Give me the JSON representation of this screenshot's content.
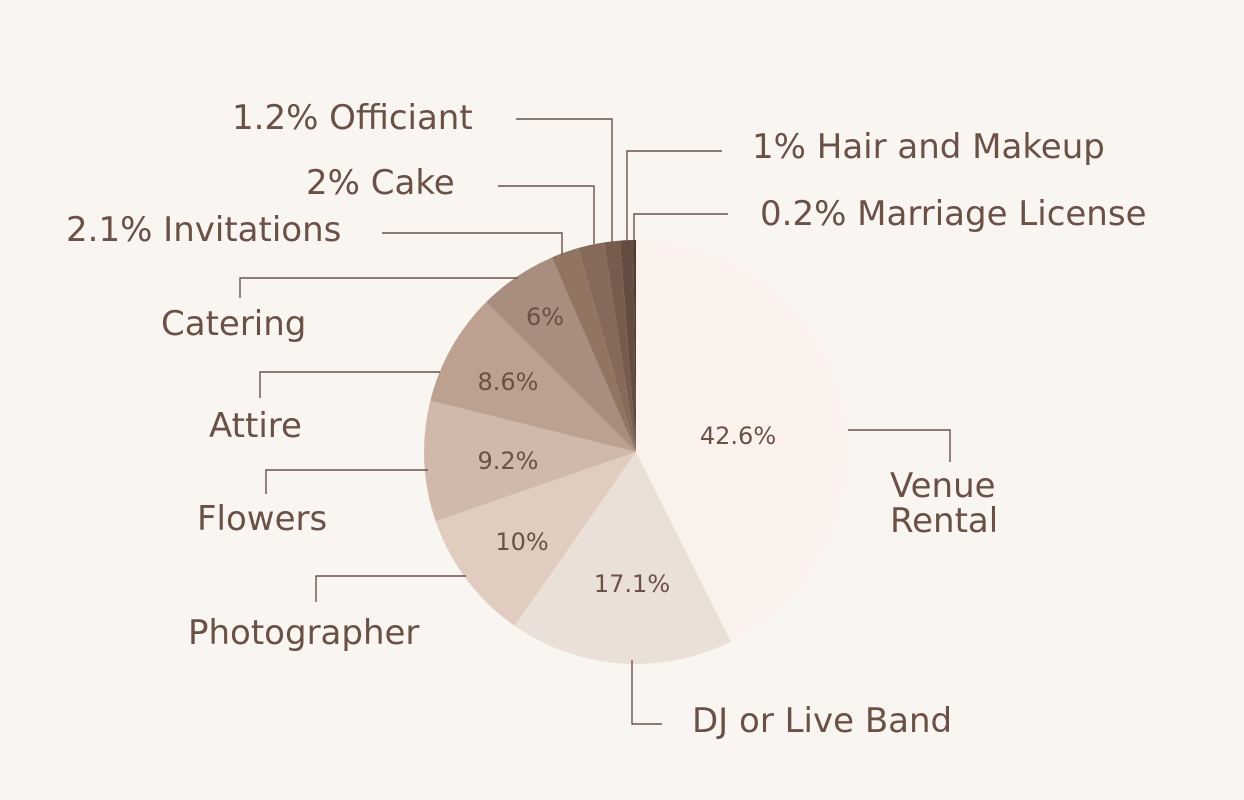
{
  "chart_data": {
    "type": "pie",
    "title": "",
    "slices": [
      {
        "label": "Venue Rental",
        "value": 42.6,
        "value_label": "42.6%",
        "color": "#fbf2ed"
      },
      {
        "label": "DJ or Live Band",
        "value": 17.1,
        "value_label": "17.1%",
        "color": "#ebe0d8"
      },
      {
        "label": "Photographer",
        "value": 10,
        "value_label": "10%",
        "color": "#e0cdbf"
      },
      {
        "label": "Flowers",
        "value": 9.2,
        "value_label": "9.2%",
        "color": "#d0b9aa"
      },
      {
        "label": "Attire",
        "value": 8.6,
        "value_label": "8.6%",
        "color": "#bda190"
      },
      {
        "label": "Catering",
        "value": 6,
        "value_label": "6%",
        "color": "#a78e7e"
      },
      {
        "label": "Invitations",
        "value": 2.1,
        "value_label": "2.1% Invitations",
        "color": "#917562"
      },
      {
        "label": "Cake",
        "value": 2,
        "value_label": "2% Cake",
        "color": "#85695a"
      },
      {
        "label": "Officiant",
        "value": 1.2,
        "value_label": "1.2% Officiant",
        "color": "#765c4d"
      },
      {
        "label": "Hair and Makeup",
        "value": 1,
        "value_label": "1% Hair and Makeup",
        "color": "#654c41"
      },
      {
        "label": "Marriage License",
        "value": 0.2,
        "value_label": "0.2% Marriage License",
        "color": "#4e3a32"
      }
    ]
  }
}
